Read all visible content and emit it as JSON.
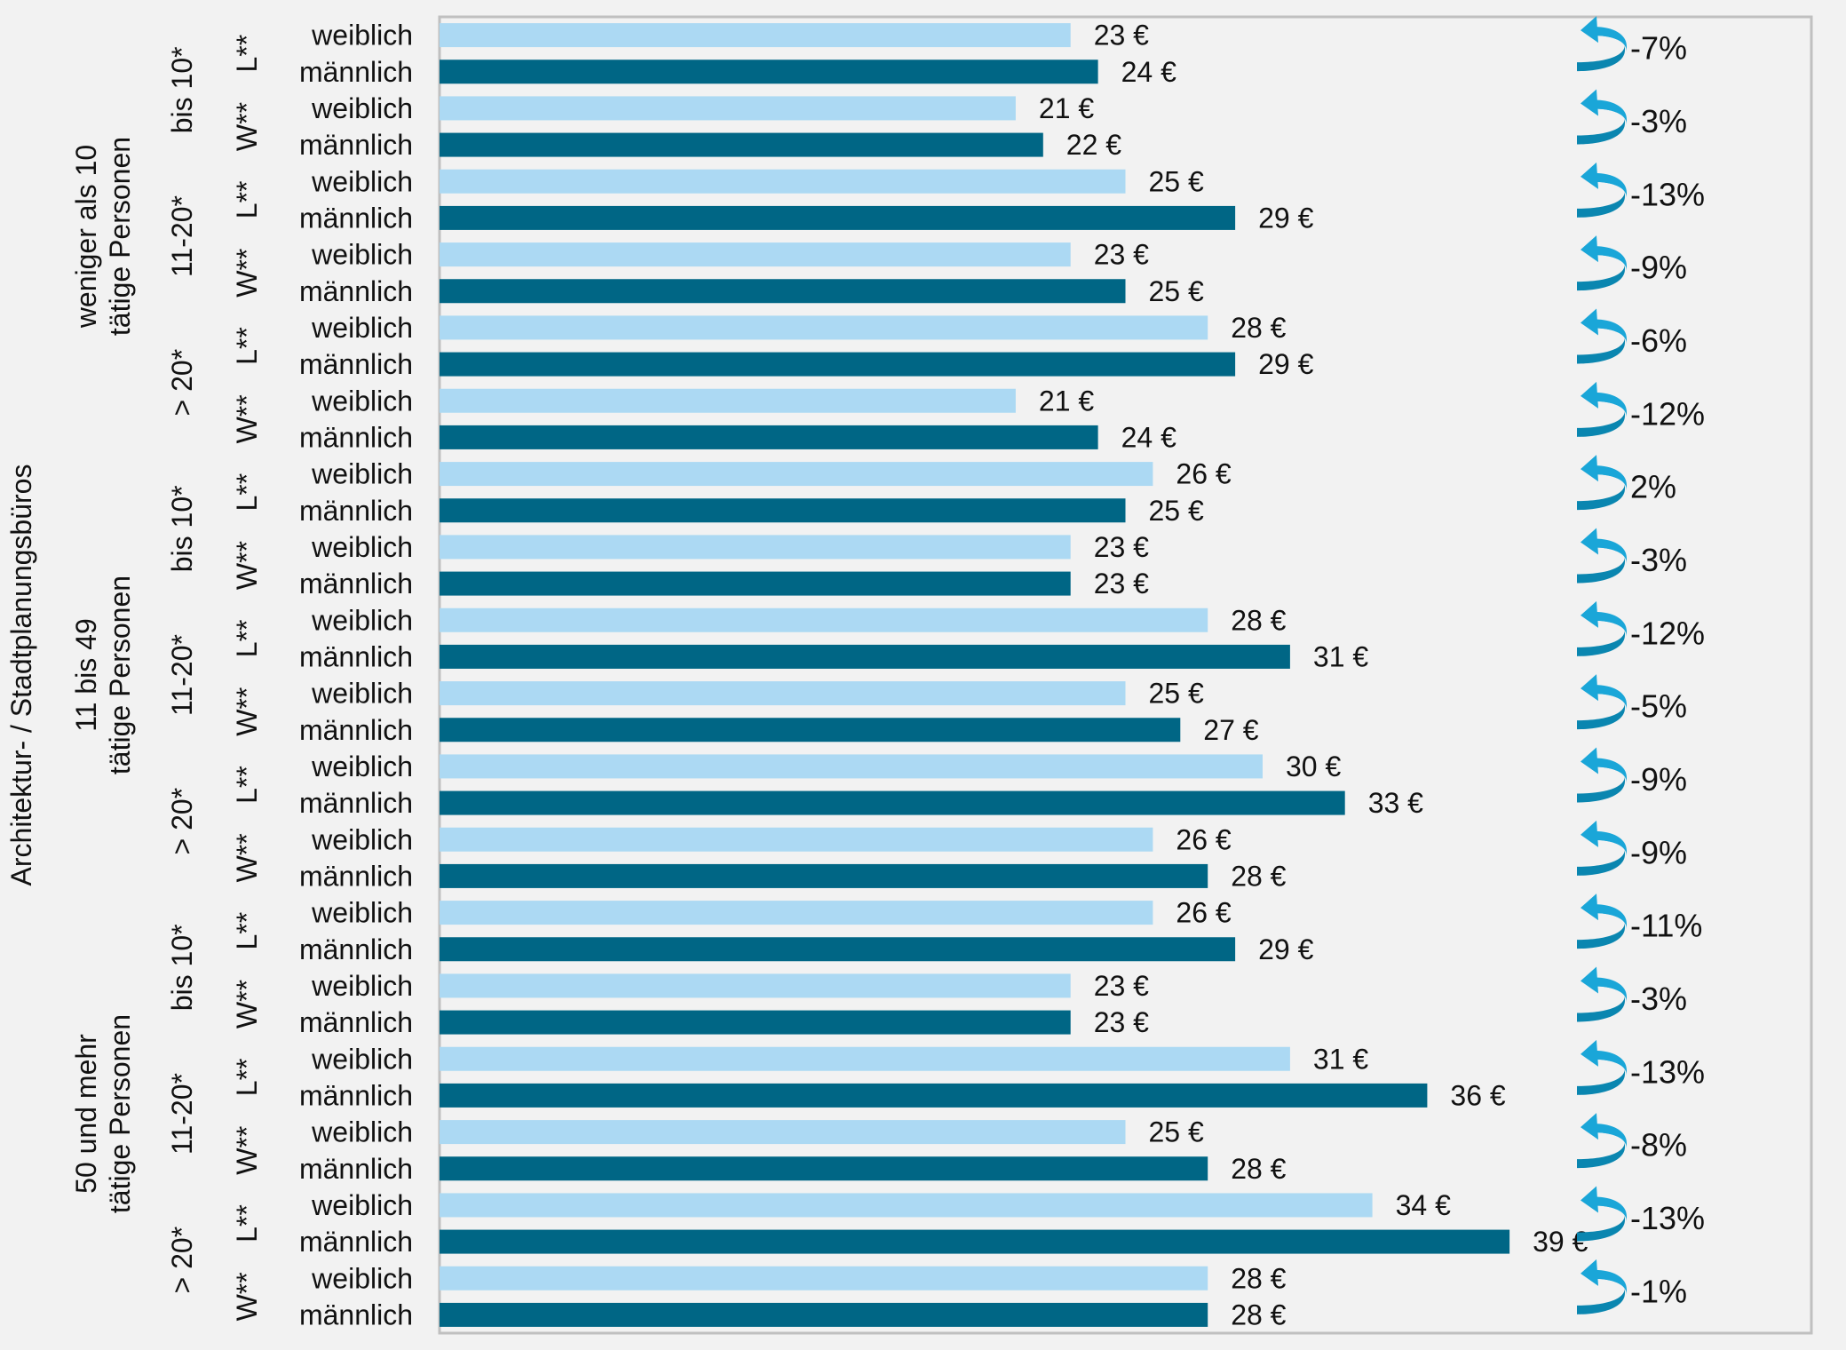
{
  "chart_data": {
    "type": "bar",
    "orientation": "horizontal",
    "title": "Architektur- / Stadtplanungsbüros",
    "xlim": [
      0,
      50
    ],
    "unit": "€",
    "colors": {
      "weiblich": "#acd9f3",
      "männlich": "#006685",
      "arrow_light": "#1aa6d8",
      "arrow_dark": "#0a86b0",
      "frame": "#c0c0c0",
      "background": "#f2f2f2"
    },
    "groups": [
      {
        "label": [
          "weniger als 10",
          "tätige Personen"
        ],
        "experience": [
          {
            "label": "bis 10*",
            "types": [
              {
                "label": "L**",
                "weiblich": 23,
                "männlich": 24,
                "weiblich_label": "23 €",
                "männlich_label": "24 €",
                "gap": "-7%"
              },
              {
                "label": "W**",
                "weiblich": 21,
                "männlich": 22,
                "weiblich_label": "21 €",
                "männlich_label": "22 €",
                "gap": "-3%"
              }
            ]
          },
          {
            "label": "11-20*",
            "types": [
              {
                "label": "L**",
                "weiblich": 25,
                "männlich": 29,
                "weiblich_label": "25 €",
                "männlich_label": "29 €",
                "gap": "-13%"
              },
              {
                "label": "W**",
                "weiblich": 23,
                "männlich": 25,
                "weiblich_label": "23 €",
                "männlich_label": "25 €",
                "gap": "-9%"
              }
            ]
          },
          {
            "label": "> 20*",
            "types": [
              {
                "label": "L**",
                "weiblich": 28,
                "männlich": 29,
                "weiblich_label": "28 €",
                "männlich_label": "29 €",
                "gap": "-6%"
              },
              {
                "label": "W**",
                "weiblich": 21,
                "männlich": 24,
                "weiblich_label": "21 €",
                "männlich_label": "24 €",
                "gap": "-12%"
              }
            ]
          }
        ]
      },
      {
        "label": [
          "11 bis 49",
          "tätige Personen"
        ],
        "experience": [
          {
            "label": "bis 10*",
            "types": [
              {
                "label": "L**",
                "weiblich": 26,
                "männlich": 25,
                "weiblich_label": "26 €",
                "männlich_label": "25 €",
                "gap": "2%"
              },
              {
                "label": "W**",
                "weiblich": 23,
                "männlich": 23,
                "weiblich_label": "23 €",
                "männlich_label": "23 €",
                "gap": "-3%"
              }
            ]
          },
          {
            "label": "11-20*",
            "types": [
              {
                "label": "L**",
                "weiblich": 28,
                "männlich": 31,
                "weiblich_label": "28 €",
                "männlich_label": "31 €",
                "gap": "-12%"
              },
              {
                "label": "W**",
                "weiblich": 25,
                "männlich": 27,
                "weiblich_label": "25 €",
                "männlich_label": "27 €",
                "gap": "-5%"
              }
            ]
          },
          {
            "label": "> 20*",
            "types": [
              {
                "label": "L**",
                "weiblich": 30,
                "männlich": 33,
                "weiblich_label": "30 €",
                "männlich_label": "33 €",
                "gap": "-9%"
              },
              {
                "label": "W**",
                "weiblich": 26,
                "männlich": 28,
                "weiblich_label": "26 €",
                "männlich_label": "28 €",
                "gap": "-9%"
              }
            ]
          }
        ]
      },
      {
        "label": [
          "50 und mehr",
          "tätige Personen"
        ],
        "experience": [
          {
            "label": "bis 10*",
            "types": [
              {
                "label": "L**",
                "weiblich": 26,
                "männlich": 29,
                "weiblich_label": "26 €",
                "männlich_label": "29 €",
                "gap": "-11%"
              },
              {
                "label": "W**",
                "weiblich": 23,
                "männlich": 23,
                "weiblich_label": "23 €",
                "männlich_label": "23 €",
                "gap": "-3%"
              }
            ]
          },
          {
            "label": "11-20*",
            "types": [
              {
                "label": "L**",
                "weiblich": 31,
                "männlich": 36,
                "weiblich_label": "31 €",
                "männlich_label": "36 €",
                "gap": "-13%"
              },
              {
                "label": "W**",
                "weiblich": 25,
                "männlich": 28,
                "weiblich_label": "25 €",
                "männlich_label": "28 €",
                "gap": "-8%"
              }
            ]
          },
          {
            "label": "> 20*",
            "types": [
              {
                "label": "L**",
                "weiblich": 34,
                "männlich": 39,
                "weiblich_label": "34 €",
                "männlich_label": "39 €",
                "gap": "-13%"
              },
              {
                "label": "W**",
                "weiblich": 28,
                "männlich": 28,
                "weiblich_label": "28 €",
                "männlich_label": "28 €",
                "gap": "-1%"
              }
            ]
          }
        ]
      }
    ],
    "gender_labels": {
      "weiblich": "weiblich",
      "männlich": "männlich"
    }
  }
}
